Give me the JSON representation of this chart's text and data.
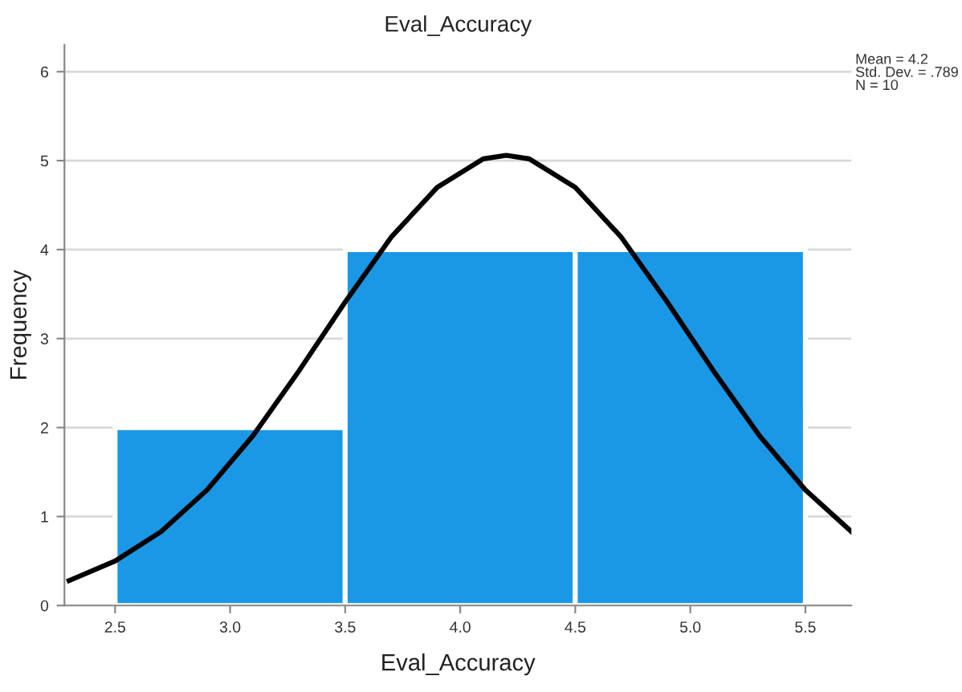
{
  "chart_data": {
    "type": "histogram",
    "title": "Eval_Accuracy",
    "xlabel": "Eval_Accuracy",
    "ylabel": "Frequency",
    "series": [
      {
        "bins": [
          2.5,
          3.5,
          4.5,
          5.5
        ],
        "values": [
          2,
          4,
          4
        ],
        "color": "#1a98e6"
      },
      {
        "type": "line",
        "color": "#000000",
        "x": [
          2.3,
          2.5,
          2.7,
          2.9,
          3.1,
          3.3,
          3.5,
          3.7,
          3.9,
          4.1,
          4.2,
          4.3,
          4.5,
          4.7,
          4.9,
          5.1,
          5.3,
          5.5,
          5.7
        ],
        "values": [
          0.28,
          0.5,
          0.83,
          1.3,
          1.91,
          2.64,
          3.41,
          4.14,
          4.7,
          5.02,
          5.06,
          5.02,
          4.7,
          4.14,
          3.41,
          2.64,
          1.91,
          1.3,
          0.83
        ]
      }
    ],
    "xlim": [
      2.28,
      5.7
    ],
    "xticks": [
      {
        "value": 2.5,
        "label": "2.5"
      },
      {
        "value": 3.0,
        "label": "3.0"
      },
      {
        "value": 3.5,
        "label": "3.5"
      },
      {
        "value": 4.0,
        "label": "4.0"
      },
      {
        "value": 4.5,
        "label": "4.5"
      },
      {
        "value": 5.0,
        "label": "5.0"
      },
      {
        "value": 5.5,
        "label": "5.5"
      }
    ],
    "ylim": [
      0,
      6.3
    ],
    "yticks": [
      0,
      1,
      2,
      3,
      4,
      5,
      6
    ],
    "grid": "y",
    "marker": "none",
    "line_style": "solid",
    "annotations": [
      "Mean = 4.2\nStd. Dev. = .789\nN = 10"
    ]
  }
}
